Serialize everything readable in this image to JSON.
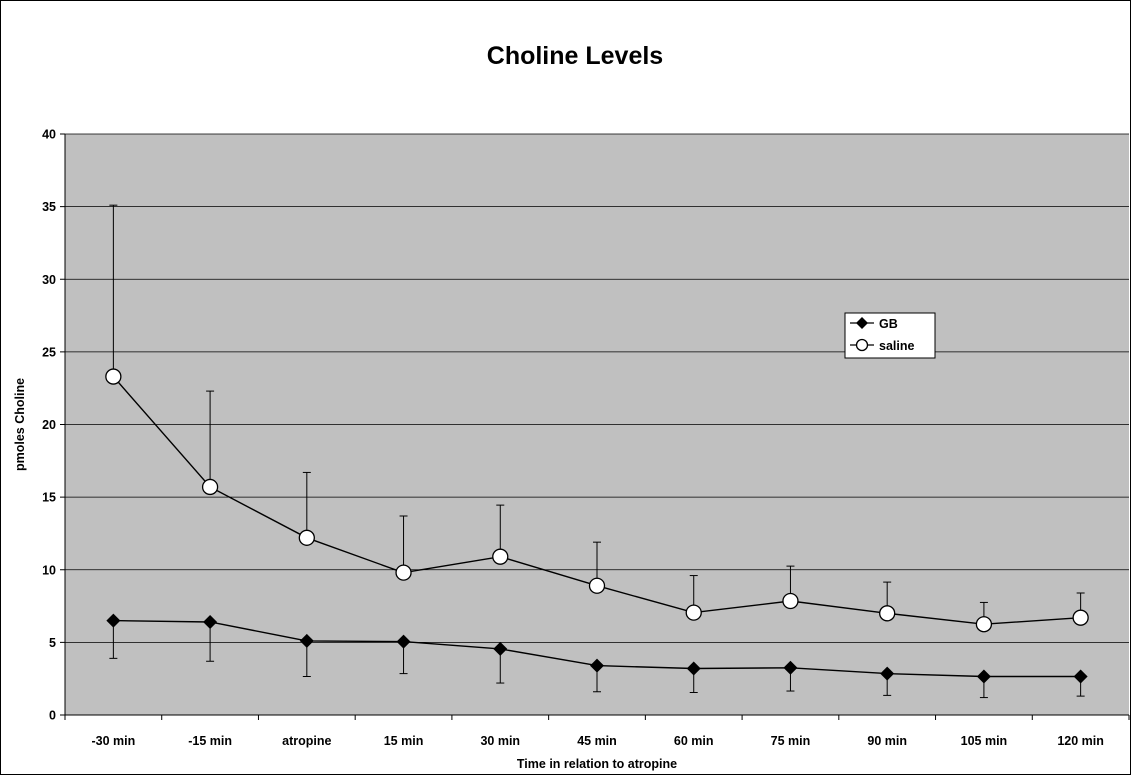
{
  "chart_data": {
    "type": "line",
    "title": "Choline Levels",
    "xlabel": "Time in relation to atropine",
    "ylabel": "pmoles Choline",
    "categories": [
      "-30 min",
      "-15 min",
      "atropine",
      "15 min",
      "30 min",
      "45 min",
      "60 min",
      "75 min",
      "90 min",
      "105 min",
      "120 min"
    ],
    "ylim": [
      0,
      40
    ],
    "yticks": [
      0,
      5,
      10,
      15,
      20,
      25,
      30,
      35,
      40
    ],
    "grid": true,
    "legend_position": "right",
    "plot_background": "#c0c0c0",
    "series": [
      {
        "name": "GB",
        "marker": "diamond",
        "color": "#000000",
        "values": [
          6.5,
          6.4,
          5.1,
          5.05,
          4.55,
          3.4,
          3.2,
          3.25,
          2.85,
          2.65,
          2.65
        ],
        "error_minus": [
          2.6,
          2.7,
          2.45,
          2.2,
          2.35,
          1.8,
          1.65,
          1.6,
          1.5,
          1.45,
          1.35
        ]
      },
      {
        "name": "saline",
        "marker": "open-circle",
        "color": "#000000",
        "values": [
          23.3,
          15.7,
          12.2,
          9.8,
          10.9,
          8.9,
          7.05,
          7.85,
          7.0,
          6.25,
          6.7
        ],
        "error_plus": [
          11.8,
          6.6,
          4.5,
          3.9,
          3.55,
          3.0,
          2.55,
          2.4,
          2.15,
          1.5,
          1.7
        ]
      }
    ]
  }
}
